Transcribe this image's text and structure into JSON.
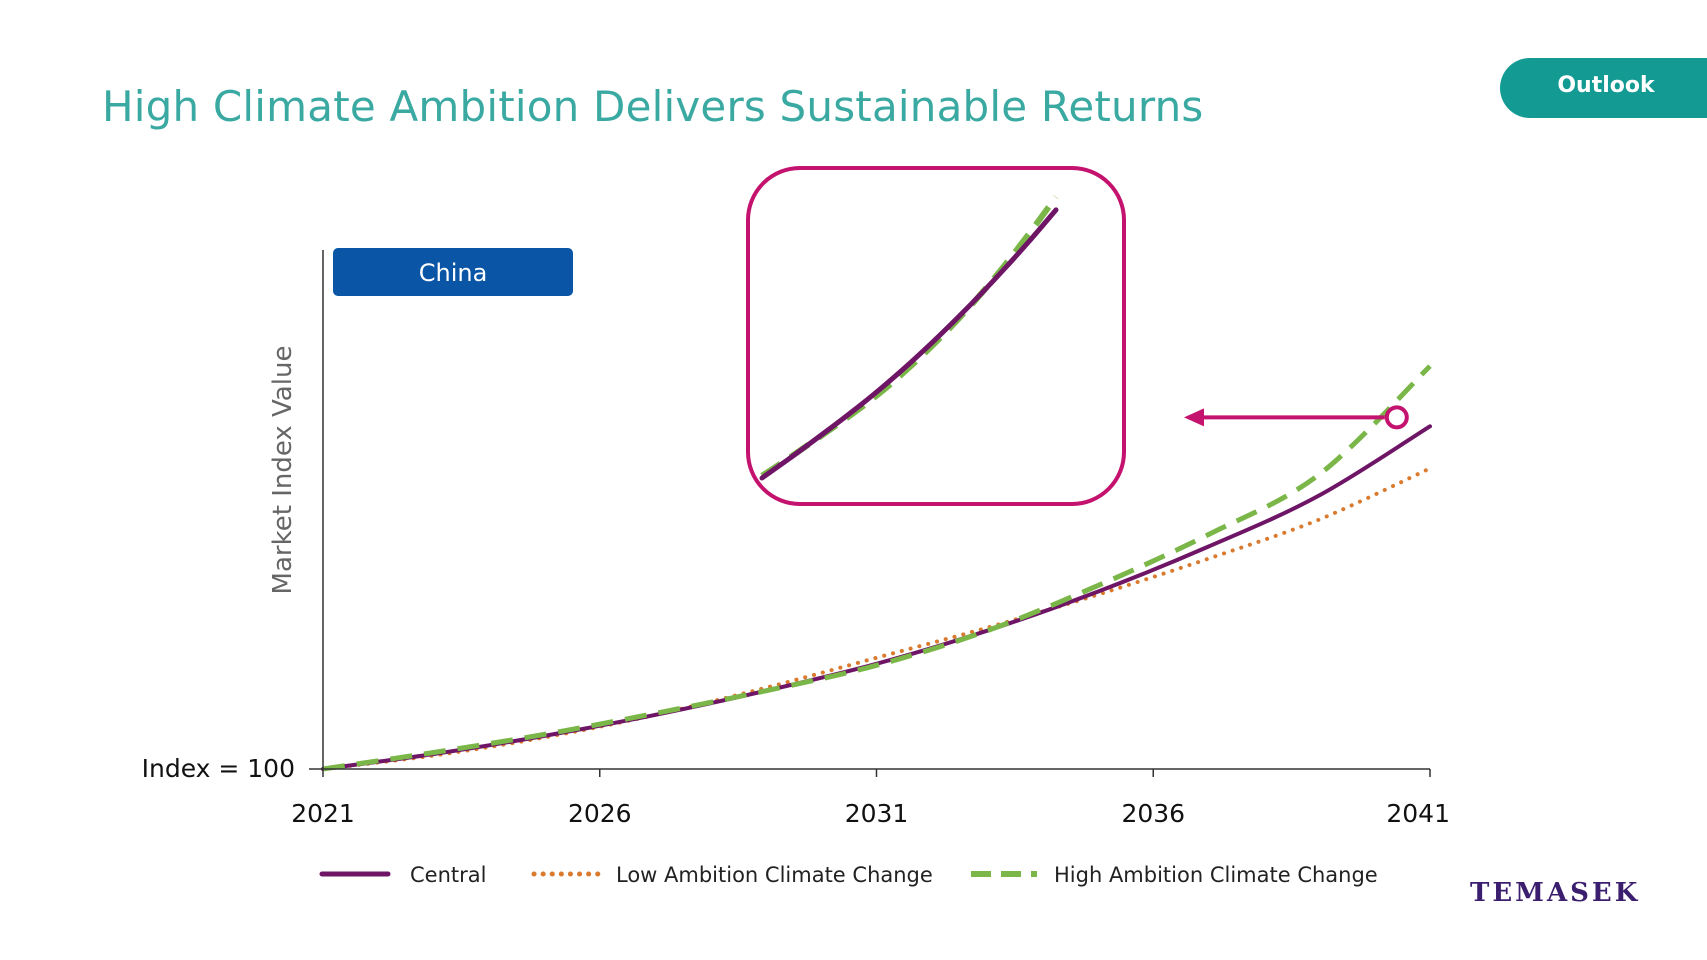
{
  "header": {
    "title": "High Climate Ambition Delivers Sustainable Returns",
    "badge": "Outlook"
  },
  "brand": {
    "logo_text": "TEMASEK"
  },
  "colors": {
    "title": "#3aa9a2",
    "badge": "#139b93",
    "central": "#6e1566",
    "low": "#d97a2e",
    "high": "#7ab648",
    "highlight": "#c4136e",
    "region_tag": "#0a55a6",
    "logo": "#3b1f6e"
  },
  "chart_data": {
    "type": "line",
    "region_label": "China",
    "ylabel": "Market Index Value",
    "y_base_label": "Index = 100",
    "xlabel": "",
    "x": [
      2021,
      2023,
      2025,
      2027,
      2029,
      2031,
      2033,
      2035,
      2037,
      2039,
      2041
    ],
    "xlim": [
      2021,
      2041
    ],
    "ylim": [
      100,
      256
    ],
    "x_ticks": [
      2021,
      2026,
      2031,
      2036,
      2041
    ],
    "x_tick_labels": [
      "2021",
      "2026",
      "2031",
      "2036",
      "2041"
    ],
    "grid": false,
    "legend_position": "bottom",
    "series": [
      {
        "name": "Central",
        "key": "central",
        "style": "solid",
        "values": [
          100,
          105,
          111,
          118,
          126,
          135,
          146,
          159,
          174,
          191,
          214
        ]
      },
      {
        "name": "Low Ambition Climate Change",
        "key": "low",
        "style": "dotted",
        "values": [
          100,
          104.5,
          110.5,
          118,
          127,
          137,
          147,
          158,
          170,
          183,
          200
        ]
      },
      {
        "name": "High Ambition Climate Change",
        "key": "high",
        "style": "dashed",
        "values": [
          100,
          105.5,
          111.5,
          118.5,
          126,
          134.5,
          146,
          161,
          178,
          198,
          234
        ]
      }
    ],
    "annotations": {
      "marker_x": 2040.4,
      "zoom_window": {
        "x_range": [
          2028,
          2034.7
        ]
      }
    }
  }
}
